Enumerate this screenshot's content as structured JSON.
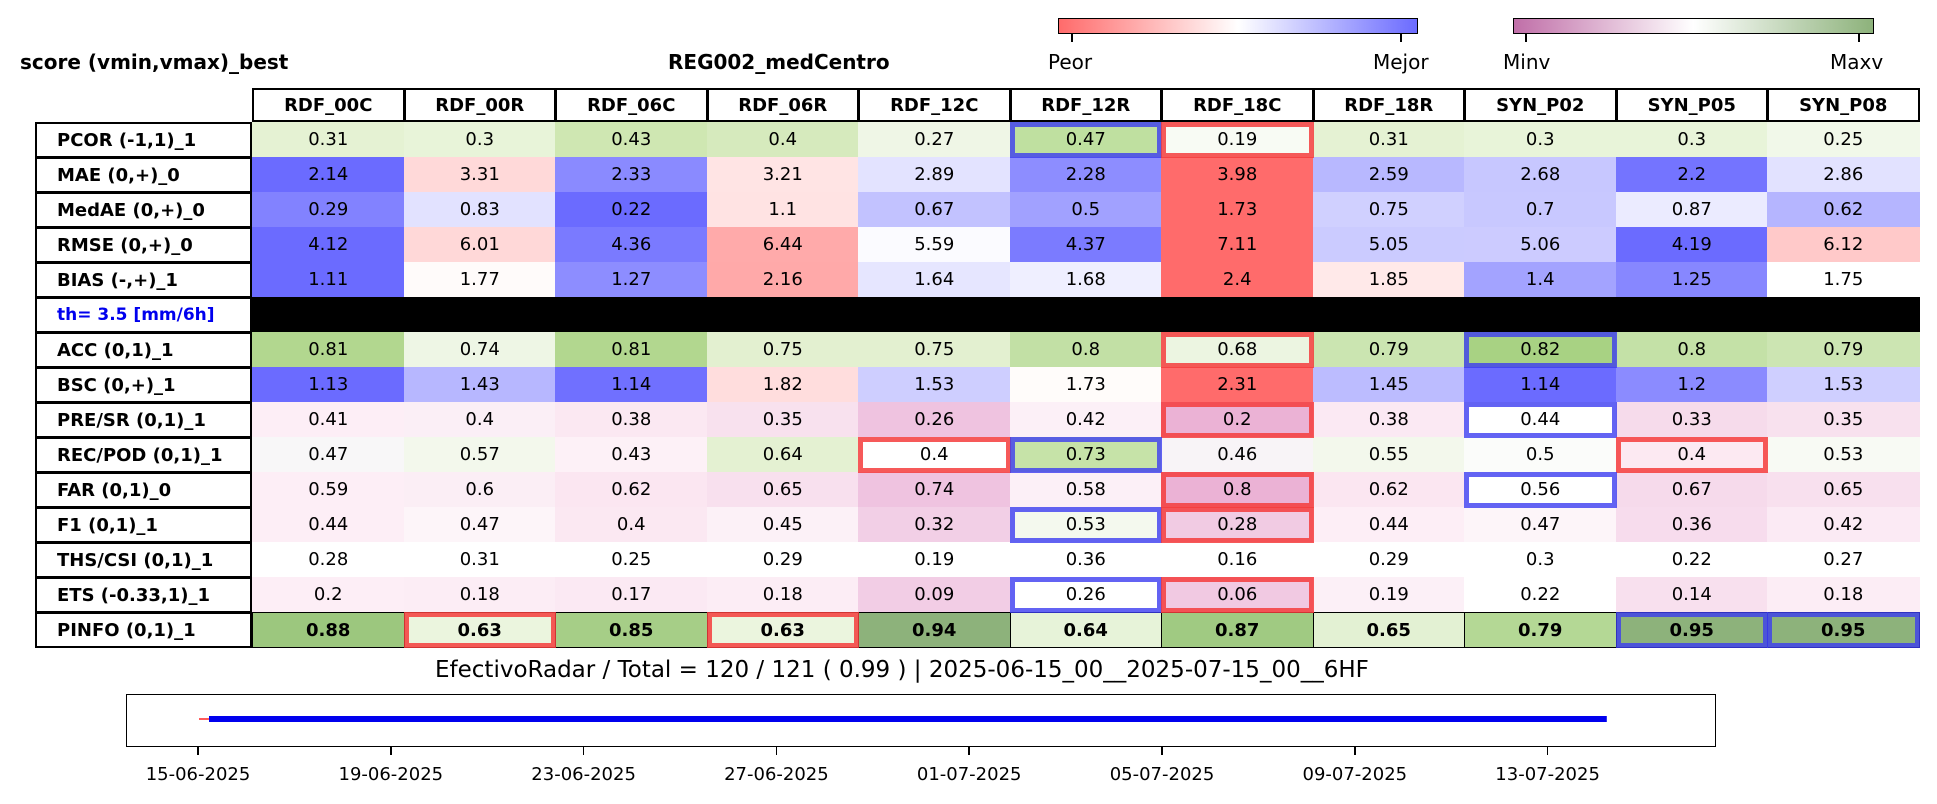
{
  "header": {
    "left_title": "score (vmin,vmax)_best",
    "center_title": "REG002_medCentro"
  },
  "colorbars": [
    {
      "left_label": "Peor",
      "right_label": "Mejor",
      "colors": [
        "#ff6b6b",
        "#ffffff",
        "#6b6bff"
      ]
    },
    {
      "left_label": "Minv",
      "right_label": "Maxv",
      "colors": [
        "#c06fa8",
        "#ffffff",
        "#8db27b"
      ]
    }
  ],
  "columns": [
    "RDF_00C",
    "RDF_00R",
    "RDF_06C",
    "RDF_06R",
    "RDF_12C",
    "RDF_12R",
    "RDF_18C",
    "RDF_18R",
    "SYN_P02",
    "SYN_P05",
    "SYN_P08"
  ],
  "rows": [
    {
      "label": "PCOR (-1,1)_1",
      "values": [
        "0.31",
        "0.3",
        "0.43",
        "0.4",
        "0.27",
        "0.47",
        "0.19",
        "0.31",
        "0.3",
        "0.3",
        "0.25"
      ]
    },
    {
      "label": "MAE (0,+)_0",
      "values": [
        "2.14",
        "3.31",
        "2.33",
        "3.21",
        "2.89",
        "2.28",
        "3.98",
        "2.59",
        "2.68",
        "2.2",
        "2.86"
      ]
    },
    {
      "label": "MedAE (0,+)_0",
      "values": [
        "0.29",
        "0.83",
        "0.22",
        "1.1",
        "0.67",
        "0.5",
        "1.73",
        "0.75",
        "0.7",
        "0.87",
        "0.62"
      ]
    },
    {
      "label": "RMSE (0,+)_0",
      "values": [
        "4.12",
        "6.01",
        "4.36",
        "6.44",
        "5.59",
        "4.37",
        "7.11",
        "5.05",
        "5.06",
        "4.19",
        "6.12"
      ]
    },
    {
      "label": "BIAS (-,+)_1",
      "values": [
        "1.11",
        "1.77",
        "1.27",
        "2.16",
        "1.64",
        "1.68",
        "2.4",
        "1.85",
        "1.4",
        "1.25",
        "1.75"
      ]
    },
    {
      "label": "th= 3.5 [mm/6h]",
      "values": [
        "",
        "",
        "",
        "",
        "",
        "",
        "",
        "",
        "",
        "",
        ""
      ],
      "threshold": true
    },
    {
      "label": "ACC (0,1)_1",
      "values": [
        "0.81",
        "0.74",
        "0.81",
        "0.75",
        "0.75",
        "0.8",
        "0.68",
        "0.79",
        "0.82",
        "0.8",
        "0.79"
      ]
    },
    {
      "label": "BSC (0,+)_1",
      "values": [
        "1.13",
        "1.43",
        "1.14",
        "1.82",
        "1.53",
        "1.73",
        "2.31",
        "1.45",
        "1.14",
        "1.2",
        "1.53"
      ]
    },
    {
      "label": "PRE/SR (0,1)_1",
      "values": [
        "0.41",
        "0.4",
        "0.38",
        "0.35",
        "0.26",
        "0.42",
        "0.2",
        "0.38",
        "0.44",
        "0.33",
        "0.35"
      ]
    },
    {
      "label": "REC/POD (0,1)_1",
      "values": [
        "0.47",
        "0.57",
        "0.43",
        "0.64",
        "0.4",
        "0.73",
        "0.46",
        "0.55",
        "0.5",
        "0.4",
        "0.53"
      ]
    },
    {
      "label": "FAR (0,1)_0",
      "values": [
        "0.59",
        "0.6",
        "0.62",
        "0.65",
        "0.74",
        "0.58",
        "0.8",
        "0.62",
        "0.56",
        "0.67",
        "0.65"
      ]
    },
    {
      "label": "F1 (0,1)_1",
      "values": [
        "0.44",
        "0.47",
        "0.4",
        "0.45",
        "0.32",
        "0.53",
        "0.28",
        "0.44",
        "0.47",
        "0.36",
        "0.42"
      ]
    },
    {
      "label": "THS/CSI (0,1)_1",
      "values": [
        "0.28",
        "0.31",
        "0.25",
        "0.29",
        "0.19",
        "0.36",
        "0.16",
        "0.29",
        "0.3",
        "0.22",
        "0.27"
      ]
    },
    {
      "label": "ETS (-0.33,1)_1",
      "values": [
        "0.2",
        "0.18",
        "0.17",
        "0.18",
        "0.09",
        "0.26",
        "0.06",
        "0.19",
        "0.22",
        "0.14",
        "0.18"
      ]
    },
    {
      "label": "PINFO (0,1)_1",
      "values": [
        "0.88",
        "0.63",
        "0.85",
        "0.63",
        "0.94",
        "0.64",
        "0.87",
        "0.65",
        "0.79",
        "0.95",
        "0.95"
      ],
      "bold": true
    }
  ],
  "cell_colors": [
    [
      "#e5f2d3",
      "#e8f4d9",
      "#cfe7b2",
      "#d6eabd",
      "#eff6e6",
      "#bfe0a0",
      "#f8fbf4",
      "#e5f2d3",
      "#e8f4d9",
      "#e8f4d9",
      "#f1f8e9"
    ],
    [
      "#6b6bff",
      "#ffd9d9",
      "#8a8aff",
      "#ffe4e4",
      "#e3e3ff",
      "#8d8dff",
      "#ff6b6b",
      "#b8b8ff",
      "#c7c7ff",
      "#7474ff",
      "#e2e2ff"
    ],
    [
      "#8282ff",
      "#e2e2ff",
      "#6b6bff",
      "#ffe3e3",
      "#c2c2ff",
      "#a1a1ff",
      "#ff6b6b",
      "#d0d0ff",
      "#c8c8ff",
      "#ebebff",
      "#b5b5ff"
    ],
    [
      "#6b6bff",
      "#ffd8d8",
      "#7a7aff",
      "#ffaaaa",
      "#fbfbff",
      "#7b7bff",
      "#ff6b6b",
      "#cbcbff",
      "#cccbff",
      "#6b6bff",
      "#ffc9c9"
    ],
    [
      "#6b6bff",
      "#fffbfa",
      "#8d8dff",
      "#ffa9a9",
      "#e6e6ff",
      "#efefff",
      "#ff6b6b",
      "#ffe9e9",
      "#a3a3ff",
      "#8787ff",
      "#ffffff"
    ],
    [
      "#000000",
      "#000000",
      "#000000",
      "#000000",
      "#000000",
      "#000000",
      "#000000",
      "#000000",
      "#000000",
      "#000000",
      "#000000"
    ],
    [
      "#b2d78f",
      "#eef6e5",
      "#b2d78f",
      "#e3f0d0",
      "#e3f0d0",
      "#c2e0a5",
      "#ecf5e1",
      "#cbe5b1",
      "#a8d283",
      "#c4e1a7",
      "#cce5b2"
    ],
    [
      "#6b6bff",
      "#b7b7ff",
      "#7070ff",
      "#ffdddd",
      "#ceceff",
      "#fffcfa",
      "#ff6b6b",
      "#bcbcff",
      "#6b6bff",
      "#8b8bff",
      "#cfcfff"
    ],
    [
      "#fdeef6",
      "#fbeff6",
      "#fbe8f2",
      "#f8e1ee",
      "#efc3e0",
      "#fcf0f7",
      "#ebb2d5",
      "#fbe9f3",
      "#ffffff",
      "#f6dbeb",
      "#f8e1ee"
    ],
    [
      "#f8f7f8",
      "#f3f8ec",
      "#fdf1f7",
      "#e4f1d2",
      "#ffffff",
      "#c6e3a8",
      "#f8f4f7",
      "#f3f8ec",
      "#fbfcfa",
      "#fce9f2",
      "#f8faf4"
    ],
    [
      "#fdeef6",
      "#fbeef5",
      "#fbe6f1",
      "#f8e0ee",
      "#efc3e0",
      "#fcf0f7",
      "#ebb2d5",
      "#fbe6f1",
      "#ffffff",
      "#f6daeb",
      "#f8e0ee"
    ],
    [
      "#fdeef6",
      "#fdf5f9",
      "#fbe8f2",
      "#fcf1f7",
      "#f2cfe6",
      "#f4f9ee",
      "#f1cbe3",
      "#fdeef6",
      "#fdf5f9",
      "#f7dced",
      "#fbeaf4"
    ],
    [
      "#ffffff",
      "#ffffff",
      "#ffffff",
      "#ffffff",
      "#ffffff",
      "#ffffff",
      "#ffffff",
      "#ffffff",
      "#ffffff",
      "#ffffff",
      "#ffffff"
    ],
    [
      "#fdeef6",
      "#fcedf5",
      "#fbe9f3",
      "#fcedf5",
      "#f2cde5",
      "#ffffff",
      "#f1c9e2",
      "#fcf0f7",
      "#ffffff",
      "#f8e0ee",
      "#fcedf5"
    ],
    [
      "#9cc77e",
      "#ebf5de",
      "#a6ce87",
      "#ebf5de",
      "#8db27b",
      "#e7f3d9",
      "#a0ca82",
      "#e3f1d3",
      "#b4d895",
      "#8db27b",
      "#8db27b"
    ]
  ],
  "highlights": [
    {
      "row": 0,
      "col": 5,
      "color": "blue"
    },
    {
      "row": 0,
      "col": 6,
      "color": "red"
    },
    {
      "row": 6,
      "col": 6,
      "color": "red"
    },
    {
      "row": 6,
      "col": 8,
      "color": "blue"
    },
    {
      "row": 8,
      "col": 6,
      "color": "red"
    },
    {
      "row": 8,
      "col": 8,
      "color": "blue"
    },
    {
      "row": 9,
      "col": 4,
      "color": "red"
    },
    {
      "row": 9,
      "col": 5,
      "color": "blue"
    },
    {
      "row": 9,
      "col": 9,
      "color": "red"
    },
    {
      "row": 10,
      "col": 6,
      "color": "red"
    },
    {
      "row": 10,
      "col": 8,
      "color": "blue"
    },
    {
      "row": 11,
      "col": 5,
      "color": "blue"
    },
    {
      "row": 11,
      "col": 6,
      "color": "red"
    },
    {
      "row": 13,
      "col": 5,
      "color": "blue"
    },
    {
      "row": 13,
      "col": 6,
      "color": "red"
    },
    {
      "row": 14,
      "col": 1,
      "color": "red"
    },
    {
      "row": 14,
      "col": 3,
      "color": "red"
    },
    {
      "row": 14,
      "col": 9,
      "color": "blue"
    },
    {
      "row": 14,
      "col": 10,
      "color": "blue"
    }
  ],
  "summary": "EfectivoRadar / Total  =  120 / 121 ( 0.99 ) | 2025-06-15_00__2025-07-15_00__6HF",
  "chart_data": {
    "type": "table",
    "title": "REG002_medCentro",
    "timeline": {
      "start": "2025-06-15",
      "end": "2025-07-15",
      "series_start": "2025-06-15",
      "series_end": "2025-07-14",
      "tick_labels": [
        "15-06-2025",
        "19-06-2025",
        "23-06-2025",
        "27-06-2025",
        "01-07-2025",
        "05-07-2025",
        "09-07-2025",
        "13-07-2025"
      ],
      "tick_days": [
        0,
        4,
        8,
        12,
        16,
        20,
        24,
        28
      ],
      "line_color": "#0000ee"
    }
  }
}
